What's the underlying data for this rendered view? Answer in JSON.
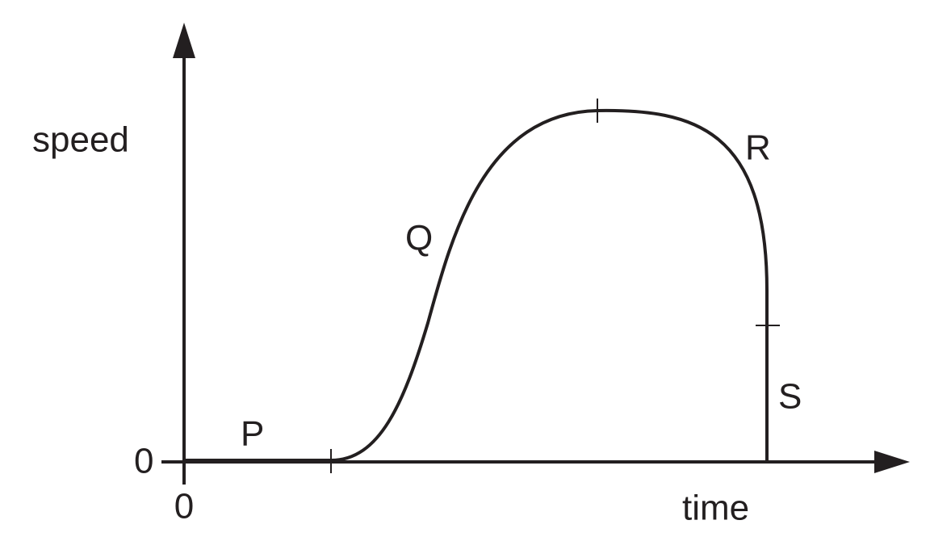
{
  "axes": {
    "y_label": "speed",
    "x_label": "time",
    "y_origin": "0",
    "x_origin": "0"
  },
  "sections": [
    "P",
    "Q",
    "R",
    "S"
  ]
}
